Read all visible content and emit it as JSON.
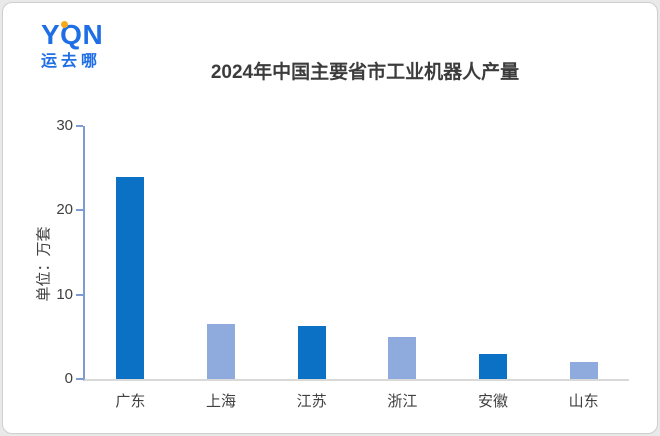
{
  "logo": {
    "text": "YQN",
    "subtext": "运去哪",
    "brand_color": "#1e6fe6",
    "dot_color": "#f7a81b"
  },
  "chart_data": {
    "type": "bar",
    "title": "2024年中国主要省市工业机器人产量",
    "categories": [
      "广东",
      "上海",
      "江苏",
      "浙江",
      "安徽",
      "山东"
    ],
    "values": [
      24,
      6.5,
      6.3,
      5,
      3,
      2
    ],
    "bar_colors": [
      "#0b71c4",
      "#8faadc",
      "#0b71c4",
      "#8faadc",
      "#0b71c4",
      "#8faadc"
    ],
    "ylabel": "单位：万套",
    "xlabel": "",
    "ylim": [
      0,
      30
    ],
    "yticks": [
      0,
      10,
      20,
      30
    ],
    "grid": false,
    "legend_position": "none"
  },
  "colors": {
    "bar_dark": "#0b71c4",
    "bar_light": "#8faadc",
    "y_axis_line": "#7e9cd4",
    "x_axis_line": "#d9d9d9",
    "text": "#404040",
    "title_text": "#3c3c3c"
  }
}
